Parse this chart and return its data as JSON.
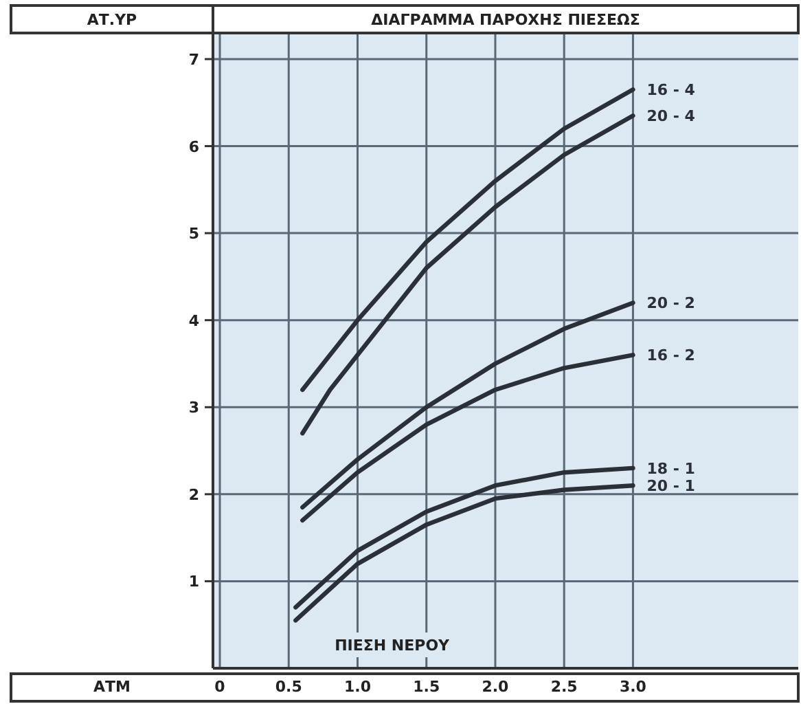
{
  "chart_data": {
    "type": "line",
    "title": "ΔΙΑΓΡΑΜΜΑ ΠΑΡΟΧΗΣ ΠΙΕΣΕΩΣ",
    "ylabel": "ΑΤ.ΥΡ",
    "xlabel": "ΠΙΕΣΗ ΝΕΡΟΥ",
    "annotations": [
      "ΑΤΜ"
    ],
    "xlim": [
      -0.05,
      4.2
    ],
    "ylim": [
      0,
      7.3
    ],
    "xticks": [
      0,
      0.5,
      {
        "value": 1,
        "label": "1.0"
      },
      1.5,
      {
        "value": 2,
        "label": "2.0"
      },
      2.5,
      {
        "value": 3,
        "label": "3.0"
      }
    ],
    "yticks": [
      1,
      2,
      3,
      4,
      5,
      6,
      7
    ],
    "grid": true,
    "marker": "none",
    "line_style": "solid",
    "series": [
      {
        "name": "16 - 4",
        "color": "#2b3038",
        "x": [
          0.6,
          0.8,
          1.0,
          1.5,
          2.0,
          2.5,
          3.0
        ],
        "values": [
          3.2,
          3.6,
          4.0,
          4.9,
          5.6,
          6.2,
          6.65
        ]
      },
      {
        "name": "20 - 4",
        "color": "#2b3038",
        "x": [
          0.6,
          0.8,
          1.0,
          1.5,
          2.0,
          2.5,
          3.0
        ],
        "values": [
          2.7,
          3.2,
          3.6,
          4.6,
          5.3,
          5.9,
          6.35
        ]
      },
      {
        "name": "20 - 2",
        "color": "#2b3038",
        "x": [
          0.6,
          1.0,
          1.5,
          2.0,
          2.5,
          3.0
        ],
        "values": [
          1.85,
          2.4,
          3.0,
          3.5,
          3.9,
          4.2
        ]
      },
      {
        "name": "16 - 2",
        "color": "#2b3038",
        "x": [
          0.6,
          1.0,
          1.5,
          2.0,
          2.5,
          3.0
        ],
        "values": [
          1.7,
          2.25,
          2.8,
          3.2,
          3.45,
          3.6
        ]
      },
      {
        "name": "18 - 1",
        "color": "#2b3038",
        "x": [
          0.55,
          1.0,
          1.5,
          2.0,
          2.5,
          3.0
        ],
        "values": [
          0.7,
          1.35,
          1.8,
          2.1,
          2.25,
          2.3
        ]
      },
      {
        "name": "20 - 1",
        "color": "#2b3038",
        "x": [
          0.55,
          1.0,
          1.5,
          2.0,
          2.5,
          3.0
        ],
        "values": [
          0.55,
          1.2,
          1.65,
          1.95,
          2.05,
          2.1
        ]
      }
    ]
  }
}
